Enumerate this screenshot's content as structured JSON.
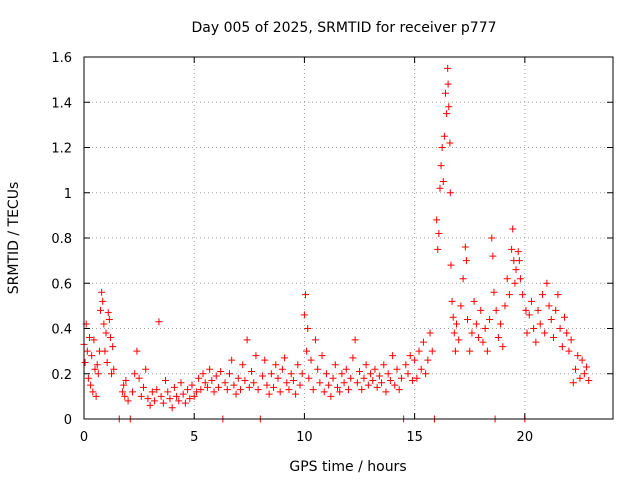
{
  "chart_data": {
    "type": "scatter",
    "title": "Day 005 of 2025, SRMTID for receiver p777",
    "xlabel": "GPS time / hours",
    "ylabel": "SRMTID / TECUs",
    "xlim": [
      0,
      24
    ],
    "ylim": [
      0,
      1.6
    ],
    "xticks": [
      "0",
      "5",
      "10",
      "15",
      "20"
    ],
    "yticks": [
      "0",
      "0.2",
      "0.4",
      "0.6",
      "0.8",
      "1",
      "1.2",
      "1.4",
      "1.6"
    ],
    "marker": "plus",
    "color": "#ff0000",
    "grid": true,
    "series": [
      {
        "name": "SRMTID",
        "points": [
          [
            0.0,
            0.33
          ],
          [
            0.05,
            0.25
          ],
          [
            0.1,
            0.42
          ],
          [
            0.15,
            0.3
          ],
          [
            0.2,
            0.18
          ],
          [
            0.25,
            0.36
          ],
          [
            0.3,
            0.15
          ],
          [
            0.35,
            0.28
          ],
          [
            0.4,
            0.12
          ],
          [
            0.45,
            0.35
          ],
          [
            0.5,
            0.22
          ],
          [
            0.55,
            0.1
          ],
          [
            0.6,
            0.24
          ],
          [
            0.65,
            0.2
          ],
          [
            0.7,
            0.3
          ],
          [
            0.75,
            0.48
          ],
          [
            0.8,
            0.56
          ],
          [
            0.85,
            0.52
          ],
          [
            0.9,
            0.42
          ],
          [
            0.95,
            0.3
          ],
          [
            1.0,
            0.38
          ],
          [
            1.05,
            0.25
          ],
          [
            1.1,
            0.47
          ],
          [
            1.15,
            0.44
          ],
          [
            1.2,
            0.36
          ],
          [
            1.25,
            0.2
          ],
          [
            1.3,
            0.32
          ],
          [
            1.35,
            0.22
          ],
          [
            1.6,
            0.0
          ],
          [
            1.75,
            0.12
          ],
          [
            1.8,
            0.15
          ],
          [
            1.85,
            0.1
          ],
          [
            1.9,
            0.17
          ],
          [
            2.0,
            0.08
          ],
          [
            2.1,
            0.0
          ],
          [
            2.2,
            0.12
          ],
          [
            2.3,
            0.2
          ],
          [
            2.4,
            0.3
          ],
          [
            2.5,
            0.18
          ],
          [
            2.6,
            0.1
          ],
          [
            2.7,
            0.14
          ],
          [
            2.8,
            0.22
          ],
          [
            2.9,
            0.09
          ],
          [
            3.0,
            0.06
          ],
          [
            3.1,
            0.12
          ],
          [
            3.2,
            0.08
          ],
          [
            3.3,
            0.13
          ],
          [
            3.4,
            0.43
          ],
          [
            3.5,
            0.1
          ],
          [
            3.6,
            0.07
          ],
          [
            3.7,
            0.17
          ],
          [
            3.8,
            0.12
          ],
          [
            3.9,
            0.09
          ],
          [
            4.0,
            0.05
          ],
          [
            4.1,
            0.14
          ],
          [
            4.2,
            0.1
          ],
          [
            4.3,
            0.08
          ],
          [
            4.4,
            0.16
          ],
          [
            4.5,
            0.11
          ],
          [
            4.6,
            0.07
          ],
          [
            4.7,
            0.13
          ],
          [
            4.8,
            0.09
          ],
          [
            4.9,
            0.15
          ],
          [
            5.0,
            0.1
          ],
          [
            5.1,
            0.12
          ],
          [
            5.2,
            0.18
          ],
          [
            5.3,
            0.13
          ],
          [
            5.4,
            0.2
          ],
          [
            5.5,
            0.16
          ],
          [
            5.6,
            0.14
          ],
          [
            5.7,
            0.22
          ],
          [
            5.8,
            0.17
          ],
          [
            5.9,
            0.12
          ],
          [
            6.0,
            0.19
          ],
          [
            6.1,
            0.14
          ],
          [
            6.2,
            0.21
          ],
          [
            6.3,
            0.0
          ],
          [
            6.4,
            0.16
          ],
          [
            6.5,
            0.13
          ],
          [
            6.6,
            0.2
          ],
          [
            6.7,
            0.26
          ],
          [
            6.8,
            0.15
          ],
          [
            6.9,
            0.11
          ],
          [
            7.0,
            0.18
          ],
          [
            7.1,
            0.13
          ],
          [
            7.2,
            0.24
          ],
          [
            7.3,
            0.17
          ],
          [
            7.4,
            0.35
          ],
          [
            7.5,
            0.14
          ],
          [
            7.6,
            0.21
          ],
          [
            7.7,
            0.16
          ],
          [
            7.8,
            0.28
          ],
          [
            7.9,
            0.13
          ],
          [
            8.0,
            0.0
          ],
          [
            8.1,
            0.19
          ],
          [
            8.2,
            0.26
          ],
          [
            8.3,
            0.15
          ],
          [
            8.4,
            0.11
          ],
          [
            8.5,
            0.2
          ],
          [
            8.6,
            0.14
          ],
          [
            8.7,
            0.24
          ],
          [
            8.8,
            0.18
          ],
          [
            8.9,
            0.12
          ],
          [
            9.0,
            0.22
          ],
          [
            9.1,
            0.27
          ],
          [
            9.2,
            0.16
          ],
          [
            9.3,
            0.13
          ],
          [
            9.4,
            0.2
          ],
          [
            9.5,
            0.17
          ],
          [
            9.6,
            0.11
          ],
          [
            9.7,
            0.24
          ],
          [
            9.8,
            0.15
          ],
          [
            9.9,
            0.2
          ],
          [
            10.0,
            0.46
          ],
          [
            10.05,
            0.55
          ],
          [
            10.1,
            0.3
          ],
          [
            10.15,
            0.4
          ],
          [
            10.2,
            0.18
          ],
          [
            10.3,
            0.26
          ],
          [
            10.4,
            0.13
          ],
          [
            10.5,
            0.35
          ],
          [
            10.6,
            0.22
          ],
          [
            10.7,
            0.16
          ],
          [
            10.8,
            0.28
          ],
          [
            10.9,
            0.12
          ],
          [
            11.0,
            0.2
          ],
          [
            11.1,
            0.15
          ],
          [
            11.2,
            0.1
          ],
          [
            11.3,
            0.18
          ],
          [
            11.4,
            0.24
          ],
          [
            11.5,
            0.14
          ],
          [
            11.6,
            0.12
          ],
          [
            11.7,
            0.2
          ],
          [
            11.8,
            0.16
          ],
          [
            11.9,
            0.22
          ],
          [
            12.0,
            0.13
          ],
          [
            12.1,
            0.18
          ],
          [
            12.2,
            0.27
          ],
          [
            12.3,
            0.35
          ],
          [
            12.4,
            0.16
          ],
          [
            12.5,
            0.21
          ],
          [
            12.6,
            0.13
          ],
          [
            12.7,
            0.18
          ],
          [
            12.8,
            0.24
          ],
          [
            12.9,
            0.15
          ],
          [
            13.0,
            0.2
          ],
          [
            13.1,
            0.17
          ],
          [
            13.2,
            0.22
          ],
          [
            13.3,
            0.14
          ],
          [
            13.4,
            0.19
          ],
          [
            13.5,
            0.16
          ],
          [
            13.6,
            0.24
          ],
          [
            13.7,
            0.12
          ],
          [
            13.8,
            0.2
          ],
          [
            13.9,
            0.17
          ],
          [
            14.0,
            0.28
          ],
          [
            14.1,
            0.15
          ],
          [
            14.2,
            0.22
          ],
          [
            14.3,
            0.13
          ],
          [
            14.4,
            0.18
          ],
          [
            14.5,
            0.0
          ],
          [
            14.6,
            0.24
          ],
          [
            14.7,
            0.2
          ],
          [
            14.8,
            0.28
          ],
          [
            14.9,
            0.17
          ],
          [
            15.0,
            0.26
          ],
          [
            15.1,
            0.18
          ],
          [
            15.2,
            0.3
          ],
          [
            15.3,
            0.22
          ],
          [
            15.4,
            0.34
          ],
          [
            15.5,
            0.2
          ],
          [
            15.6,
            0.26
          ],
          [
            15.7,
            0.38
          ],
          [
            15.8,
            0.3
          ],
          [
            15.9,
            0.0
          ],
          [
            16.0,
            0.88
          ],
          [
            16.05,
            0.75
          ],
          [
            16.1,
            0.82
          ],
          [
            16.15,
            1.02
          ],
          [
            16.2,
            1.12
          ],
          [
            16.25,
            1.2
          ],
          [
            16.3,
            1.05
          ],
          [
            16.35,
            1.25
          ],
          [
            16.4,
            1.44
          ],
          [
            16.45,
            1.35
          ],
          [
            16.5,
            1.55
          ],
          [
            16.52,
            1.48
          ],
          [
            16.55,
            1.38
          ],
          [
            16.6,
            1.22
          ],
          [
            16.62,
            1.0
          ],
          [
            16.65,
            0.68
          ],
          [
            16.7,
            0.52
          ],
          [
            16.75,
            0.45
          ],
          [
            16.8,
            0.38
          ],
          [
            16.85,
            0.3
          ],
          [
            16.9,
            0.42
          ],
          [
            17.0,
            0.35
          ],
          [
            17.1,
            0.5
          ],
          [
            17.2,
            0.62
          ],
          [
            17.3,
            0.76
          ],
          [
            17.35,
            0.7
          ],
          [
            17.4,
            0.44
          ],
          [
            17.5,
            0.3
          ],
          [
            17.6,
            0.38
          ],
          [
            17.7,
            0.52
          ],
          [
            17.8,
            0.42
          ],
          [
            17.9,
            0.36
          ],
          [
            18.0,
            0.48
          ],
          [
            18.1,
            0.34
          ],
          [
            18.2,
            0.4
          ],
          [
            18.3,
            0.3
          ],
          [
            18.4,
            0.44
          ],
          [
            18.5,
            0.8
          ],
          [
            18.55,
            0.72
          ],
          [
            18.6,
            0.56
          ],
          [
            18.65,
            0.0
          ],
          [
            18.7,
            0.48
          ],
          [
            18.8,
            0.36
          ],
          [
            18.9,
            0.42
          ],
          [
            19.0,
            0.32
          ],
          [
            19.1,
            0.5
          ],
          [
            19.2,
            0.62
          ],
          [
            19.3,
            0.55
          ],
          [
            19.4,
            0.75
          ],
          [
            19.45,
            0.84
          ],
          [
            19.5,
            0.7
          ],
          [
            19.55,
            0.6
          ],
          [
            19.6,
            0.66
          ],
          [
            19.7,
            0.74
          ],
          [
            19.75,
            0.7
          ],
          [
            19.8,
            0.62
          ],
          [
            19.9,
            0.55
          ],
          [
            20.0,
            0.0
          ],
          [
            20.05,
            0.48
          ],
          [
            20.1,
            0.38
          ],
          [
            20.2,
            0.46
          ],
          [
            20.3,
            0.52
          ],
          [
            20.4,
            0.4
          ],
          [
            20.5,
            0.34
          ],
          [
            20.6,
            0.48
          ],
          [
            20.7,
            0.42
          ],
          [
            20.8,
            0.55
          ],
          [
            20.9,
            0.38
          ],
          [
            21.0,
            0.6
          ],
          [
            21.1,
            0.5
          ],
          [
            21.2,
            0.44
          ],
          [
            21.3,
            0.36
          ],
          [
            21.4,
            0.48
          ],
          [
            21.5,
            0.55
          ],
          [
            21.6,
            0.4
          ],
          [
            21.7,
            0.32
          ],
          [
            21.8,
            0.45
          ],
          [
            21.9,
            0.38
          ],
          [
            22.0,
            0.3
          ],
          [
            22.1,
            0.35
          ],
          [
            22.2,
            0.16
          ],
          [
            22.3,
            0.22
          ],
          [
            22.4,
            0.28
          ],
          [
            22.5,
            0.18
          ],
          [
            22.6,
            0.26
          ],
          [
            22.7,
            0.2
          ],
          [
            22.8,
            0.23
          ],
          [
            22.9,
            0.17
          ]
        ]
      }
    ]
  }
}
